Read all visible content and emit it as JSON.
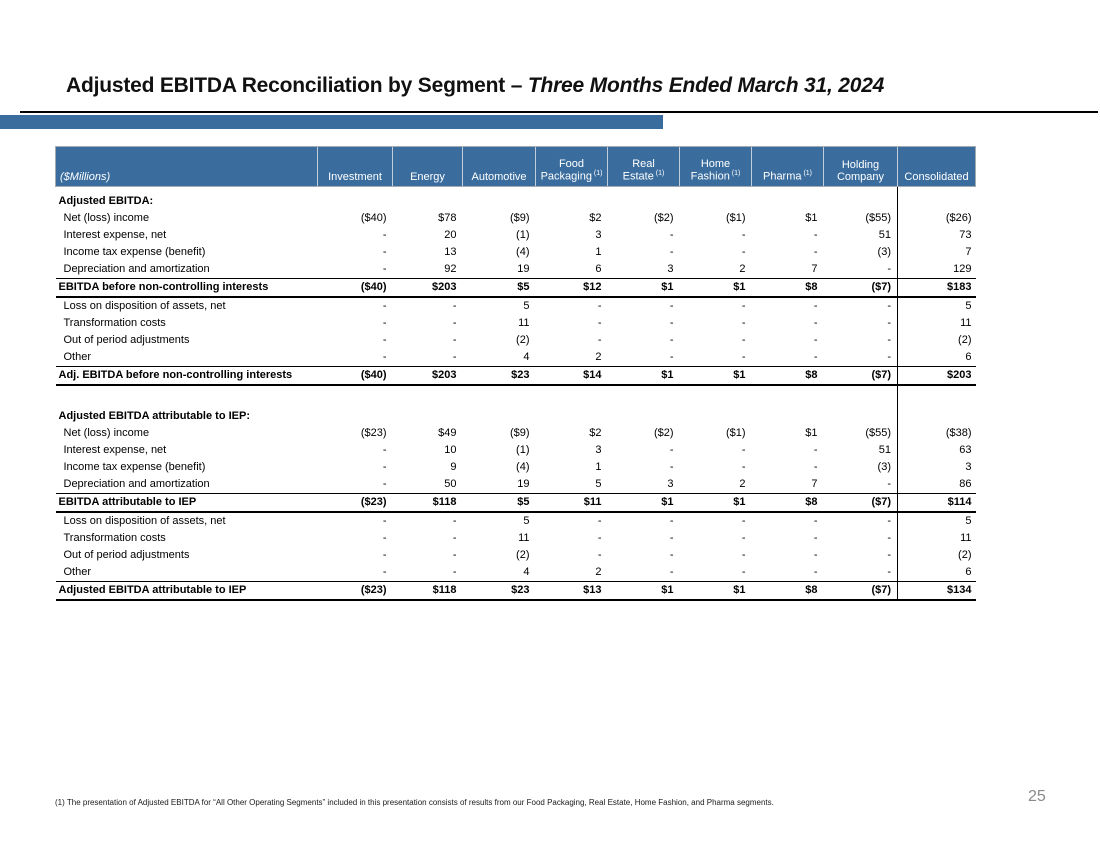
{
  "slide": {
    "title_prefix": "Adjusted EBITDA Reconciliation by Segment – ",
    "title_italic": "Three Months Ended March 31, 2024",
    "footnote": "(1) The presentation of Adjusted EBITDA for “All Other Operating Segments” included in this presentation consists of results from our Food Packaging, Real Estate, Home Fashion, and Pharma segments.",
    "page_number": "25"
  },
  "colors": {
    "header_blue": "#3A6D9E",
    "accent_bar_blue": "#3A6D9E",
    "page_number_gray": "#8A8A8A"
  },
  "table": {
    "unit_label": "($Millions)",
    "columns": [
      {
        "line1": "",
        "line2": "Investment",
        "sup": ""
      },
      {
        "line1": "",
        "line2": "Energy",
        "sup": ""
      },
      {
        "line1": "",
        "line2": "Automotive",
        "sup": ""
      },
      {
        "line1": "Food",
        "line2": "Packaging",
        "sup": "(1)"
      },
      {
        "line1": "Real",
        "line2": "Estate",
        "sup": "(1)"
      },
      {
        "line1": "Home",
        "line2": "Fashion",
        "sup": "(1)"
      },
      {
        "line1": "",
        "line2": "Pharma",
        "sup": "(1)"
      },
      {
        "line1": "Holding",
        "line2": "Company",
        "sup": ""
      },
      {
        "line1": "",
        "line2": "Consolidated",
        "sup": ""
      }
    ],
    "rows": [
      {
        "type": "section",
        "label": "Adjusted EBITDA:"
      },
      {
        "type": "data",
        "label": "Net (loss) income",
        "values": [
          "($40)",
          "$78",
          "($9)",
          "$2",
          "($2)",
          "($1)",
          "$1",
          "($55)",
          "($26)"
        ]
      },
      {
        "type": "data",
        "label": "Interest expense, net",
        "values": [
          "-",
          "20",
          "(1)",
          "3",
          "-",
          "-",
          "-",
          "51",
          "73"
        ]
      },
      {
        "type": "data",
        "label": "Income tax expense (benefit)",
        "values": [
          "-",
          "13",
          "(4)",
          "1",
          "-",
          "-",
          "-",
          "(3)",
          "7"
        ]
      },
      {
        "type": "data",
        "label": "Depreciation and amortization",
        "values": [
          "-",
          "92",
          "19",
          "6",
          "3",
          "2",
          "7",
          "-",
          "129"
        ]
      },
      {
        "type": "total",
        "label": "EBITDA before non-controlling interests",
        "values": [
          "($40)",
          "$203",
          "$5",
          "$12",
          "$1",
          "$1",
          "$8",
          "($7)",
          "$183"
        ]
      },
      {
        "type": "data",
        "label": "Loss on disposition of assets, net",
        "values": [
          "-",
          "-",
          "5",
          "-",
          "-",
          "-",
          "-",
          "-",
          "5"
        ]
      },
      {
        "type": "data",
        "label": "Transformation costs",
        "values": [
          "-",
          "-",
          "11",
          "-",
          "-",
          "-",
          "-",
          "-",
          "11"
        ]
      },
      {
        "type": "data",
        "label": "Out of period adjustments",
        "values": [
          "-",
          "-",
          "(2)",
          "-",
          "-",
          "-",
          "-",
          "-",
          "(2)"
        ]
      },
      {
        "type": "data",
        "label": "Other",
        "values": [
          "-",
          "-",
          "4",
          "2",
          "-",
          "-",
          "-",
          "-",
          "6"
        ]
      },
      {
        "type": "total",
        "label": "Adj. EBITDA before non-controlling interests",
        "values": [
          "($40)",
          "$203",
          "$23",
          "$14",
          "$1",
          "$1",
          "$8",
          "($7)",
          "$203"
        ]
      },
      {
        "type": "spacer",
        "label": ""
      },
      {
        "type": "section",
        "label": "Adjusted EBITDA attributable to IEP:"
      },
      {
        "type": "data",
        "label": "Net (loss) income",
        "values": [
          "($23)",
          "$49",
          "($9)",
          "$2",
          "($2)",
          "($1)",
          "$1",
          "($55)",
          "($38)"
        ]
      },
      {
        "type": "data",
        "label": "Interest expense, net",
        "values": [
          "-",
          "10",
          "(1)",
          "3",
          "-",
          "-",
          "-",
          "51",
          "63"
        ]
      },
      {
        "type": "data",
        "label": "Income tax expense (benefit)",
        "values": [
          "-",
          "9",
          "(4)",
          "1",
          "-",
          "-",
          "-",
          "(3)",
          "3"
        ]
      },
      {
        "type": "data",
        "label": "Depreciation and amortization",
        "values": [
          "-",
          "50",
          "19",
          "5",
          "3",
          "2",
          "7",
          "-",
          "86"
        ]
      },
      {
        "type": "total",
        "label": "EBITDA attributable to IEP",
        "values": [
          "($23)",
          "$118",
          "$5",
          "$11",
          "$1",
          "$1",
          "$8",
          "($7)",
          "$114"
        ]
      },
      {
        "type": "data",
        "label": "Loss on disposition of assets, net",
        "values": [
          "-",
          "-",
          "5",
          "-",
          "-",
          "-",
          "-",
          "-",
          "5"
        ]
      },
      {
        "type": "data",
        "label": "Transformation costs",
        "values": [
          "-",
          "-",
          "11",
          "-",
          "-",
          "-",
          "-",
          "-",
          "11"
        ]
      },
      {
        "type": "data",
        "label": "Out of period adjustments",
        "values": [
          "-",
          "-",
          "(2)",
          "-",
          "-",
          "-",
          "-",
          "-",
          "(2)"
        ]
      },
      {
        "type": "data",
        "label": "Other",
        "values": [
          "-",
          "-",
          "4",
          "2",
          "-",
          "-",
          "-",
          "-",
          "6"
        ]
      },
      {
        "type": "total",
        "label": "Adjusted EBITDA attributable to IEP",
        "values": [
          "($23)",
          "$118",
          "$23",
          "$13",
          "$1",
          "$1",
          "$8",
          "($7)",
          "$134"
        ]
      }
    ]
  }
}
